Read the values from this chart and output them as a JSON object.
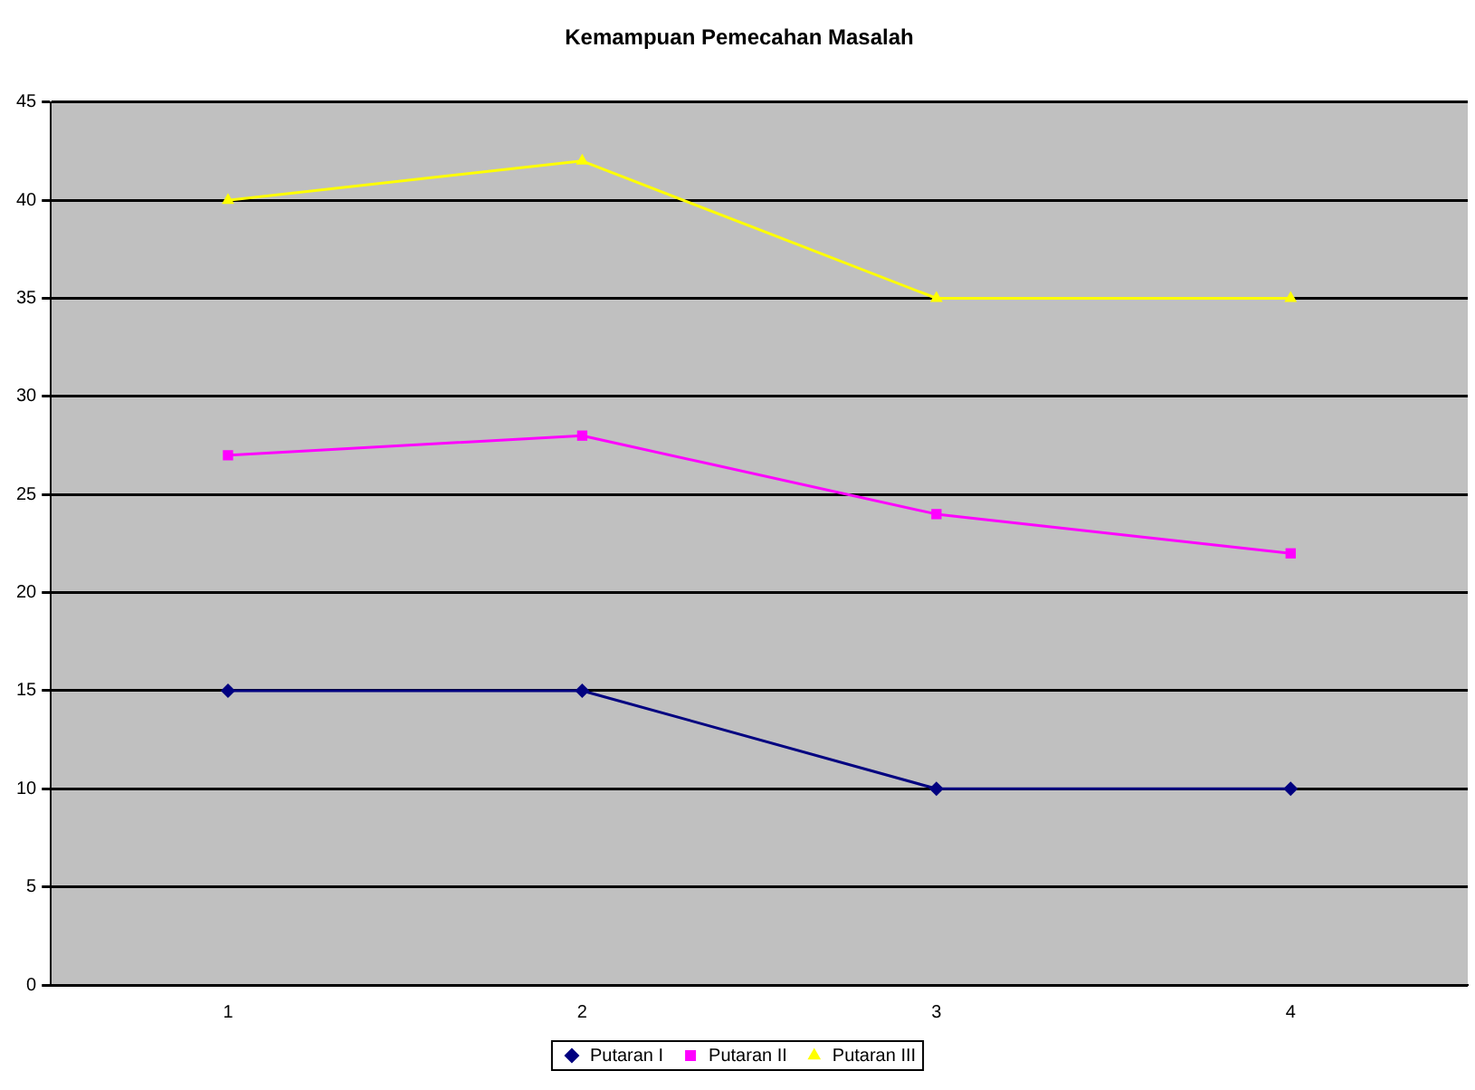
{
  "chart_data": {
    "type": "line",
    "title": "Kemampuan Pemecahan Masalah",
    "categories": [
      "1",
      "2",
      "3",
      "4"
    ],
    "series": [
      {
        "name": "Putaran I",
        "color": "#000080",
        "marker": "diamond",
        "values": [
          15,
          15,
          10,
          10
        ]
      },
      {
        "name": "Putaran II",
        "color": "#ff00ff",
        "marker": "square",
        "values": [
          27,
          28,
          24,
          22
        ]
      },
      {
        "name": "Putaran III",
        "color": "#ffff00",
        "marker": "triangle",
        "values": [
          40,
          42,
          35,
          35
        ]
      }
    ],
    "ylim": [
      0,
      45
    ],
    "yticks": [
      0,
      5,
      10,
      15,
      20,
      25,
      30,
      35,
      40,
      45
    ],
    "grid": "y",
    "legend": "bottom"
  }
}
